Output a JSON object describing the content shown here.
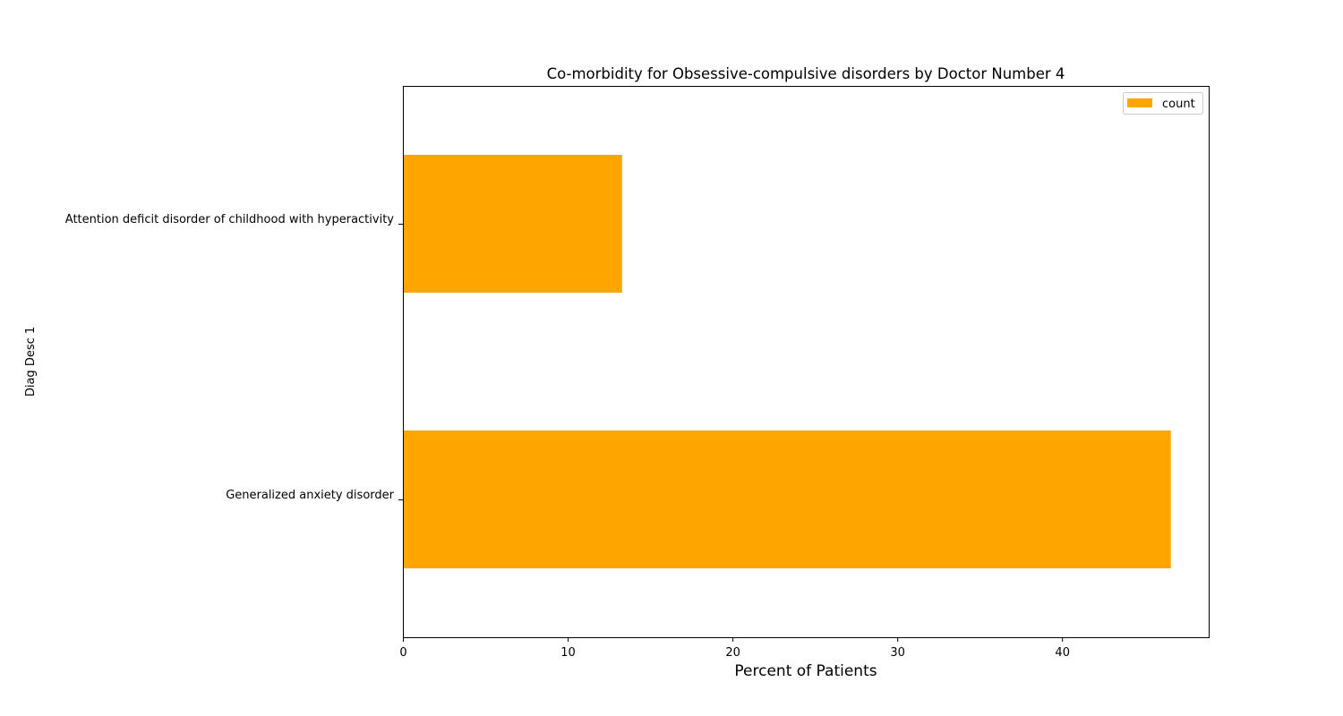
{
  "chart_data": {
    "type": "bar",
    "orientation": "horizontal",
    "title": "Co-morbidity for Obsessive-compulsive disorders by Doctor Number 4",
    "xlabel": "Percent of Patients",
    "ylabel": "Diag Desc 1",
    "categories": [
      "Attention deficit disorder of childhood with hyperactivity",
      "Generalized anxiety disorder"
    ],
    "series": [
      {
        "name": "count",
        "values": [
          13.3,
          46.6
        ],
        "color": "#FFA500"
      }
    ],
    "xlim": [
      0,
      48.9
    ],
    "xticks": [
      0,
      10,
      20,
      30,
      40
    ],
    "grid": false,
    "legend": "top-right"
  }
}
